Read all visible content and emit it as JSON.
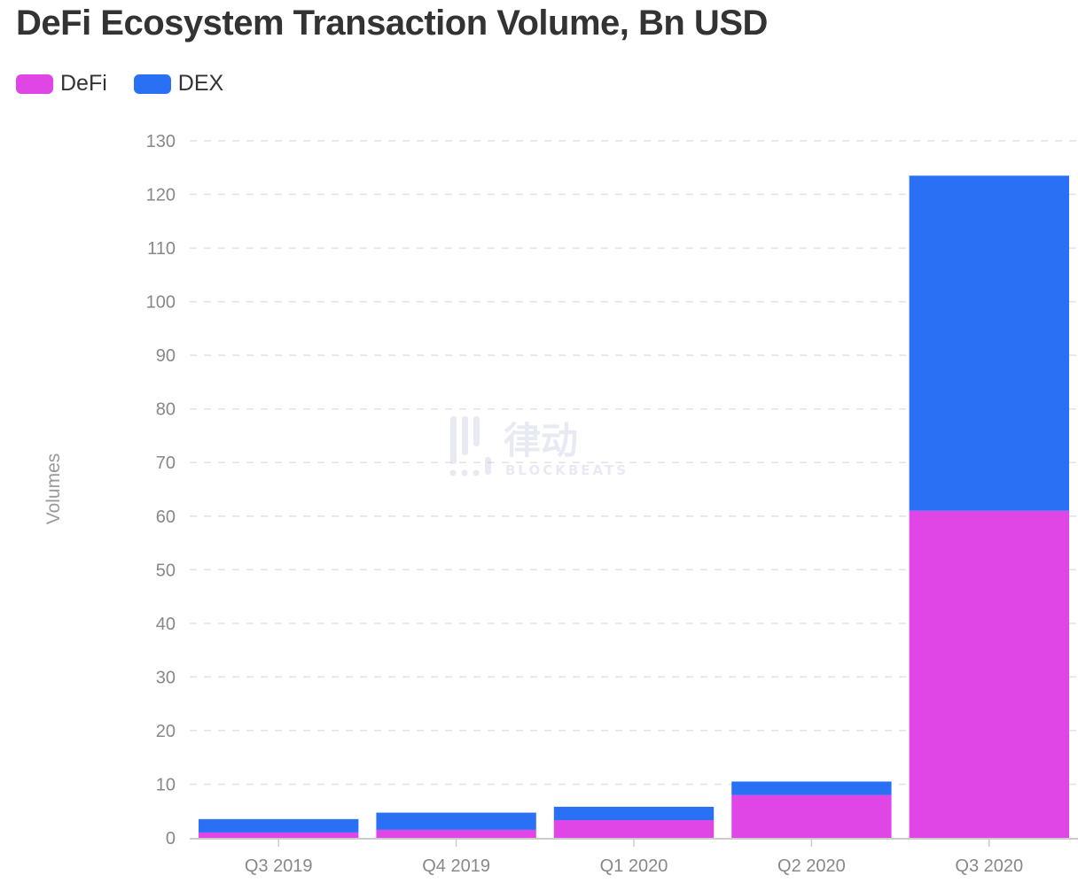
{
  "chart_data": {
    "type": "bar",
    "stacked": true,
    "title": "DeFi Ecosystem Transaction Volume, Bn USD",
    "ylabel": "Volumes",
    "xlabel": "",
    "categories": [
      "Q3 2019",
      "Q4 2019",
      "Q1 2020",
      "Q2 2020",
      "Q3 2020"
    ],
    "series": [
      {
        "name": "DeFi",
        "color": "#e046e6",
        "values": [
          1.0,
          1.5,
          3.3,
          8.0,
          61.0
        ]
      },
      {
        "name": "DEX",
        "color": "#2a70f5",
        "values": [
          2.5,
          3.2,
          2.5,
          2.5,
          62.5
        ]
      }
    ],
    "ylim": [
      0,
      130
    ],
    "yticks": [
      0,
      10,
      20,
      30,
      40,
      50,
      60,
      70,
      80,
      90,
      100,
      110,
      120,
      130
    ],
    "grid": true,
    "legend_position": "top-left"
  },
  "watermark": {
    "cn_text": "律动",
    "en_text": "BLOCKBEATS"
  }
}
